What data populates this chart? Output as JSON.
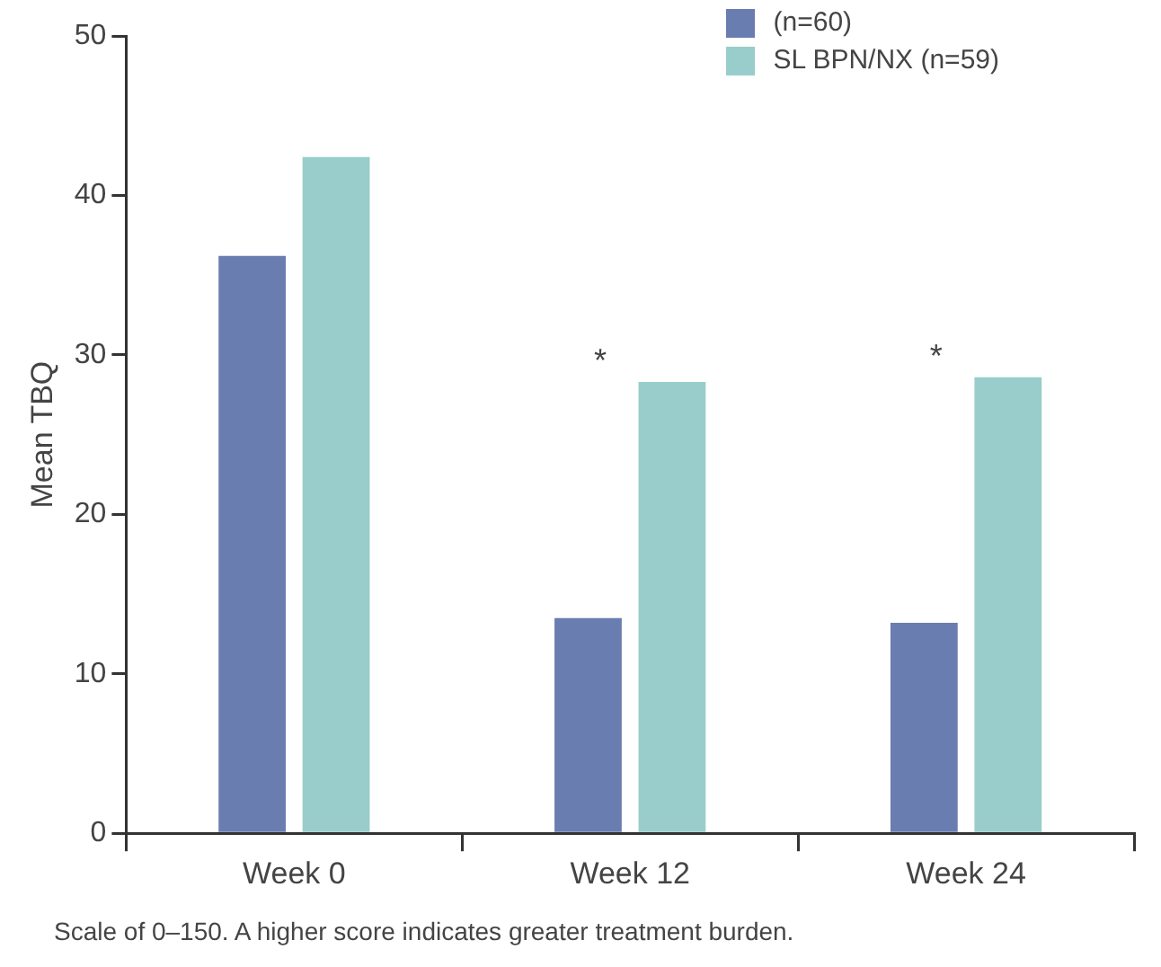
{
  "chart_data": {
    "type": "bar",
    "ylabel": "Mean TBQ",
    "categories": [
      "Week 0",
      "Week 12",
      "Week 24"
    ],
    "series": [
      {
        "name": "(n=60)",
        "color": "#6a7db0",
        "values": [
          36.2,
          13.5,
          13.2
        ]
      },
      {
        "name": "SL BPN/NX (n=59)",
        "color": "#98cdcb",
        "values": [
          42.4,
          28.3,
          28.6
        ]
      }
    ],
    "ylim": [
      0,
      50
    ],
    "yticks": [
      0,
      10,
      20,
      30,
      40,
      50
    ],
    "grid": false,
    "legend": "top right",
    "annotations": [
      {
        "text": "*",
        "x": "Week 12",
        "y": 28.3
      },
      {
        "text": "*",
        "x": "Week 24",
        "y": 28.6
      },
      "Scale of 0–150. A higher score indicates greater treatment burden."
    ]
  }
}
